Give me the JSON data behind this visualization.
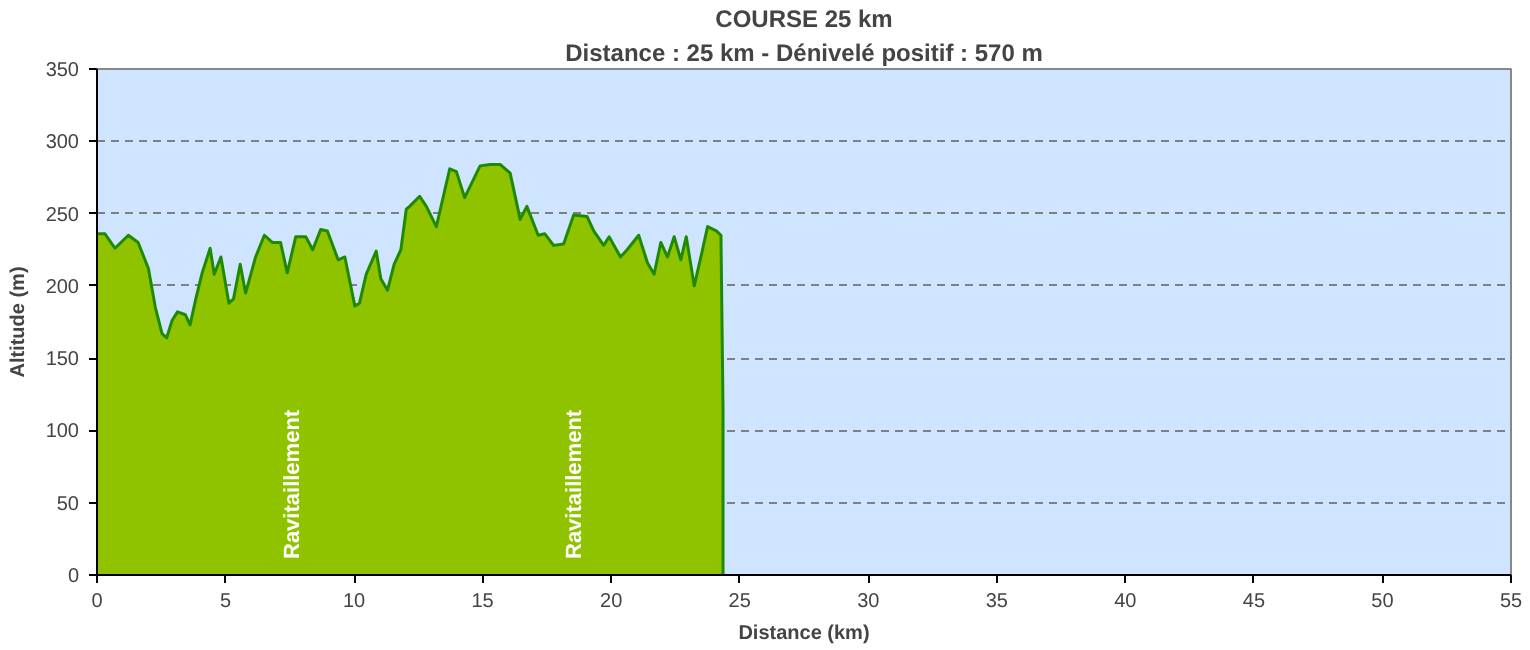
{
  "chart_data": {
    "type": "area",
    "title": "COURSE 25 km",
    "subtitle": "Distance : 25 km - Dénivelé positif : 570 m",
    "xlabel": "Distance (km)",
    "ylabel": "Altitude (m)",
    "series": [
      {
        "color": "#8fc300",
        "x": [
          0,
          0.31,
          0.7,
          1.22,
          1.6,
          2.0,
          2.27,
          2.53,
          2.71,
          2.92,
          3.13,
          3.44,
          3.62,
          3.83,
          4.09,
          4.4,
          4.56,
          4.82,
          5.13,
          5.31,
          5.57,
          5.78,
          6.17,
          6.51,
          6.82,
          7.14,
          7.4,
          7.73,
          8.12,
          8.39,
          8.7,
          8.96,
          9.38,
          9.64,
          10.03,
          10.21,
          10.47,
          10.86,
          11.04,
          11.3,
          11.56,
          11.82,
          12.03,
          12.16,
          12.55,
          12.81,
          13.2,
          13.72,
          13.98,
          14.3,
          14.9,
          15.29,
          15.68,
          16.07,
          16.46,
          16.72,
          17.16,
          17.42,
          17.76,
          18.15,
          18.54,
          19.06,
          19.32,
          19.71,
          19.92,
          20.36,
          20.62,
          21.07,
          21.41,
          21.67,
          21.93,
          22.19,
          22.45,
          22.71,
          22.92,
          23.23,
          23.49,
          23.75,
          24.09,
          24.27,
          24.35
        ],
        "values": [
          236,
          236,
          226,
          235,
          230,
          212,
          185,
          167,
          164,
          176,
          182,
          180,
          173,
          190,
          209,
          226,
          208,
          220,
          188,
          191,
          215,
          195,
          220,
          235,
          230,
          230,
          209,
          234,
          234,
          225,
          239,
          238,
          218,
          220,
          186,
          188,
          208,
          224,
          205,
          197,
          215,
          225,
          253,
          255,
          262,
          255,
          241,
          281,
          279,
          261,
          283,
          284,
          284,
          278,
          246,
          255,
          235,
          236,
          228,
          229,
          249,
          248,
          238,
          228,
          234,
          220,
          225,
          235,
          216,
          208,
          230,
          220,
          234,
          218,
          234,
          200,
          220,
          241,
          238,
          235,
          115
        ]
      }
    ],
    "xlim": [
      0,
      55
    ],
    "xticks": [
      0,
      5,
      10,
      15,
      20,
      25,
      30,
      35,
      40,
      45,
      50,
      55
    ],
    "ylim": [
      0,
      350
    ],
    "yticks": [
      0,
      50,
      100,
      150,
      200,
      250,
      300,
      350
    ],
    "grid": "y",
    "annotations": [
      "Ravitaillement",
      "Ravitaillement"
    ]
  }
}
